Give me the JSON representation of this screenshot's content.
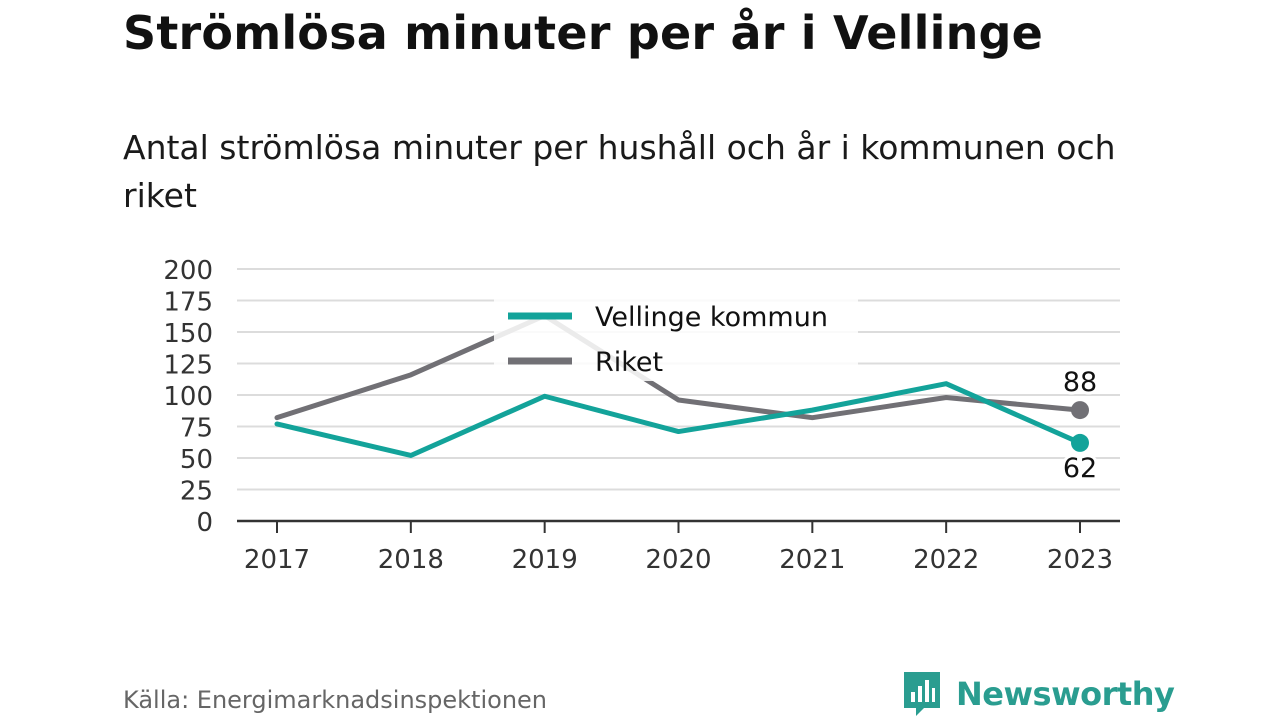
{
  "title": "Strömlösa minuter per år i Vellinge",
  "subtitle": "Antal strömlösa minuter per hushåll och år i kommunen och riket",
  "source": "Källa: Energimarknadsinspektionen",
  "brand": {
    "name": "Newsworthy",
    "icon": "newsworthy-logo-icon",
    "color": "#2a9d90"
  },
  "chart_data": {
    "type": "line",
    "title": "Strömlösa minuter per år i Vellinge",
    "subtitle": "Antal strömlösa minuter per hushåll och år i kommunen och riket",
    "categories": [
      "2017",
      "2018",
      "2019",
      "2020",
      "2021",
      "2022",
      "2023"
    ],
    "series": [
      {
        "name": "Vellinge kommun",
        "color": "#13a39a",
        "values": [
          77,
          52,
          99,
          71,
          88,
          109,
          62
        ]
      },
      {
        "name": "Riket",
        "color": "#717075",
        "values": [
          82,
          116,
          163,
          96,
          82,
          98,
          88
        ]
      }
    ],
    "yticks": [
      0,
      25,
      50,
      75,
      100,
      125,
      150,
      175,
      200
    ],
    "ylim": [
      0,
      200
    ],
    "end_labels": [
      {
        "series": "Riket",
        "text": "88",
        "placement": "above"
      },
      {
        "series": "Vellinge kommun",
        "text": "62",
        "placement": "below"
      }
    ],
    "grid": true,
    "legend": "top-center"
  }
}
